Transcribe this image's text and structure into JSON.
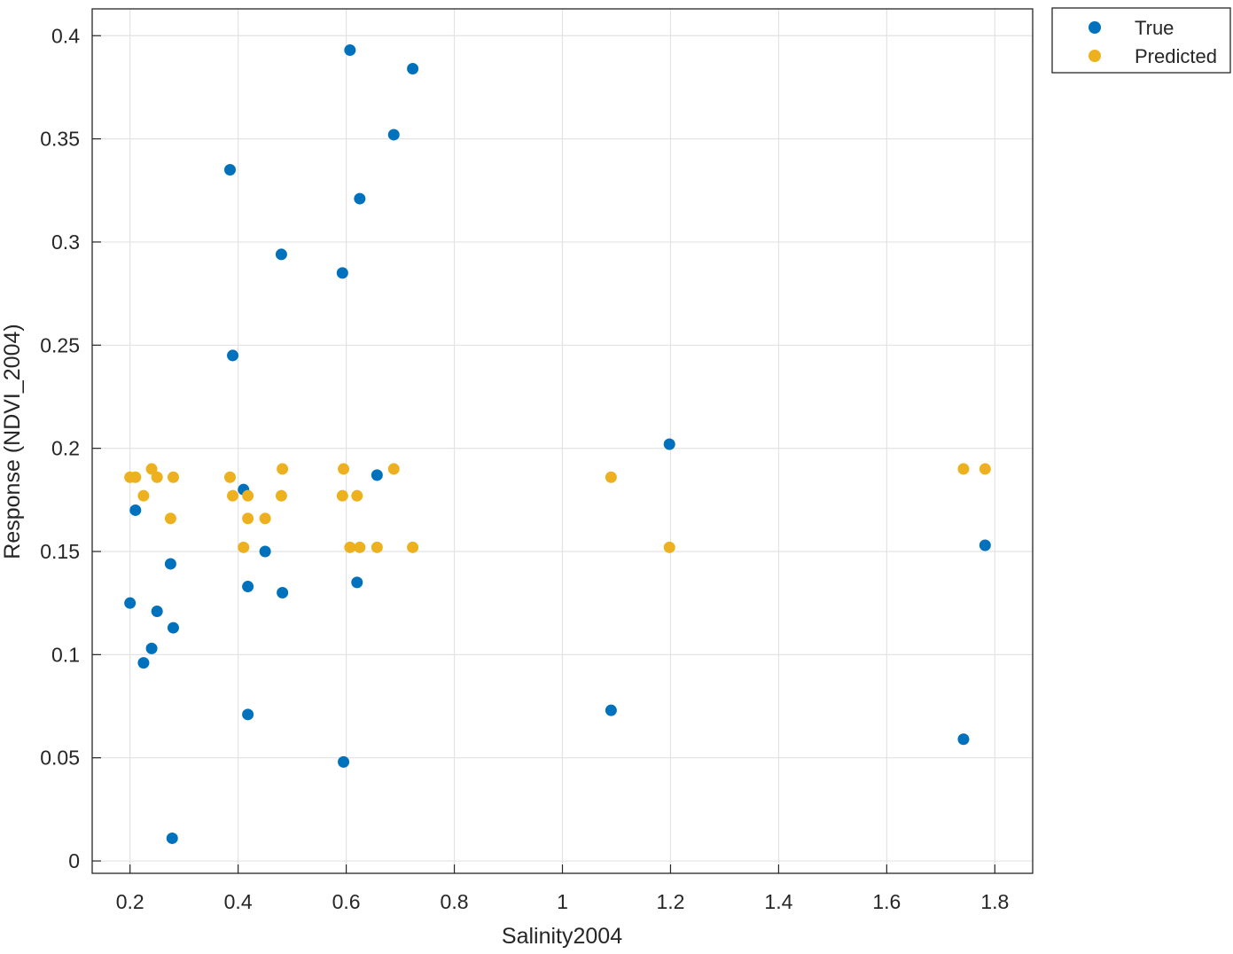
{
  "chart_data": {
    "type": "scatter",
    "xlabel": "Salinity2004",
    "ylabel": "Response (NDVI_2004)",
    "xlim": [
      0.13,
      1.87
    ],
    "ylim": [
      -0.006,
      0.413
    ],
    "xticks": [
      0.2,
      0.4,
      0.6,
      0.8,
      1,
      1.2,
      1.4,
      1.6,
      1.8
    ],
    "xtick_labels": [
      "0.2",
      "0.4",
      "0.6",
      "0.8",
      "1",
      "1.2",
      "1.4",
      "1.6",
      "1.8"
    ],
    "yticks": [
      0,
      0.05,
      0.1,
      0.15,
      0.2,
      0.25,
      0.3,
      0.35,
      0.4
    ],
    "ytick_labels": [
      "0",
      "0.05",
      "0.1",
      "0.15",
      "0.2",
      "0.25",
      "0.3",
      "0.35",
      "0.4"
    ],
    "grid": true,
    "legend_position": "outside-top-right",
    "series": [
      {
        "name": "True",
        "color": "#0072BD",
        "points": [
          [
            0.2,
            0.125
          ],
          [
            0.21,
            0.17
          ],
          [
            0.225,
            0.096
          ],
          [
            0.24,
            0.103
          ],
          [
            0.25,
            0.121
          ],
          [
            0.275,
            0.144
          ],
          [
            0.278,
            0.011
          ],
          [
            0.28,
            0.113
          ],
          [
            0.385,
            0.335
          ],
          [
            0.39,
            0.245
          ],
          [
            0.41,
            0.18
          ],
          [
            0.418,
            0.133
          ],
          [
            0.418,
            0.071
          ],
          [
            0.45,
            0.15
          ],
          [
            0.48,
            0.294
          ],
          [
            0.482,
            0.13
          ],
          [
            0.593,
            0.285
          ],
          [
            0.595,
            0.048
          ],
          [
            0.607,
            0.393
          ],
          [
            0.62,
            0.135
          ],
          [
            0.625,
            0.321
          ],
          [
            0.657,
            0.187
          ],
          [
            0.688,
            0.352
          ],
          [
            0.723,
            0.384
          ],
          [
            1.09,
            0.073
          ],
          [
            1.198,
            0.202
          ],
          [
            1.742,
            0.059
          ],
          [
            1.782,
            0.153
          ]
        ]
      },
      {
        "name": "Predicted",
        "color": "#EDB120",
        "points": [
          [
            0.2,
            0.186
          ],
          [
            0.21,
            0.186
          ],
          [
            0.225,
            0.177
          ],
          [
            0.24,
            0.19
          ],
          [
            0.25,
            0.186
          ],
          [
            0.275,
            0.166
          ],
          [
            0.28,
            0.186
          ],
          [
            0.385,
            0.186
          ],
          [
            0.39,
            0.177
          ],
          [
            0.41,
            0.152
          ],
          [
            0.418,
            0.177
          ],
          [
            0.418,
            0.166
          ],
          [
            0.45,
            0.166
          ],
          [
            0.48,
            0.177
          ],
          [
            0.482,
            0.19
          ],
          [
            0.593,
            0.177
          ],
          [
            0.595,
            0.19
          ],
          [
            0.607,
            0.152
          ],
          [
            0.62,
            0.177
          ],
          [
            0.625,
            0.152
          ],
          [
            0.657,
            0.152
          ],
          [
            0.688,
            0.19
          ],
          [
            0.723,
            0.152
          ],
          [
            1.09,
            0.186
          ],
          [
            1.198,
            0.152
          ],
          [
            1.742,
            0.19
          ],
          [
            1.782,
            0.19
          ]
        ]
      }
    ]
  }
}
